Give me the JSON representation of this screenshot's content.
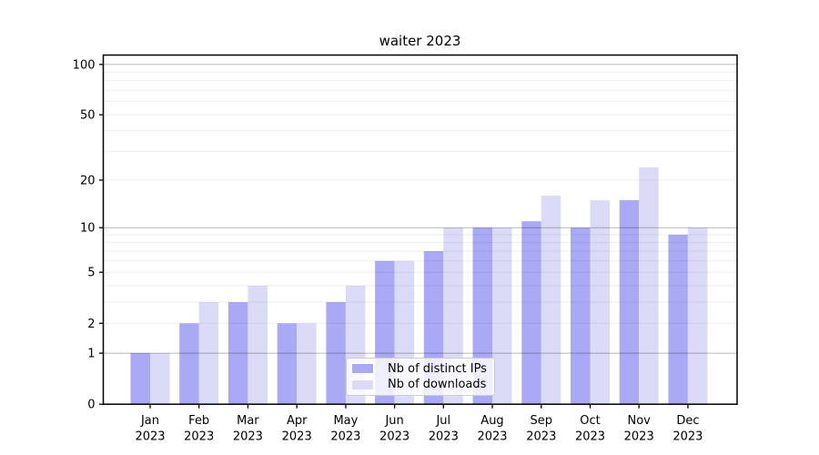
{
  "chart_data": {
    "type": "bar",
    "title": "waiter 2023",
    "categories": [
      "Jan",
      "Feb",
      "Mar",
      "Apr",
      "May",
      "Jun",
      "Jul",
      "Aug",
      "Sep",
      "Oct",
      "Nov",
      "Dec"
    ],
    "year_label": "2023",
    "series": [
      {
        "name": "Nb of distinct IPs",
        "color": "#a9a9f5",
        "values": [
          1,
          2,
          3,
          2,
          3,
          6,
          7,
          10,
          11,
          10,
          15,
          9
        ]
      },
      {
        "name": "Nb of downloads",
        "color": "#dbdbf8",
        "values": [
          1,
          3,
          4,
          2,
          4,
          6,
          10,
          10,
          16,
          15,
          24,
          10
        ]
      }
    ],
    "scale": "log1p",
    "ylim": [
      0,
      113.7
    ],
    "yticks": [
      0,
      1,
      2,
      5,
      10,
      20,
      50,
      100
    ],
    "major_gridlines": [
      1,
      10,
      100
    ],
    "minor_gridlines": [
      2,
      3,
      4,
      5,
      6,
      7,
      8,
      9,
      20,
      30,
      40,
      50,
      60,
      70,
      80,
      90
    ],
    "grid": true,
    "legend_position": "lower center",
    "xlabel": "",
    "ylabel": "",
    "colors": {
      "spine": "#000000",
      "major_grid": "rgba(0,0,0,0.28)",
      "minor_grid": "rgba(0,0,0,0.07)",
      "background": "#ffffff"
    }
  }
}
